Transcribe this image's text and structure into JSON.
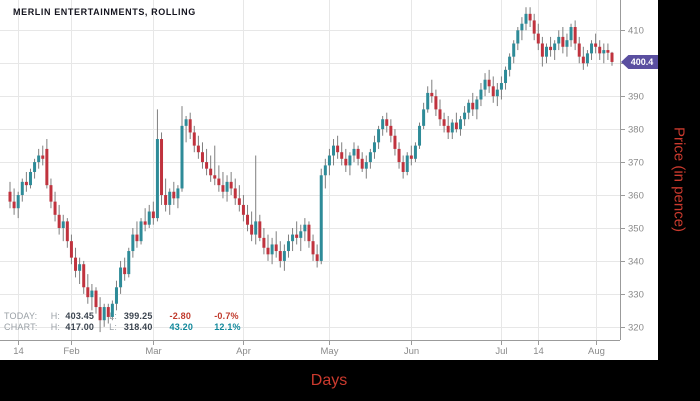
{
  "window": {
    "title": "MERLIN ENTERTAINMENTS, ROLLING"
  },
  "axes": {
    "x_label": "Days",
    "y_label": "Price (in pence)"
  },
  "price_badge": {
    "value": "400.4"
  },
  "stats": {
    "today": {
      "label": "TODAY:",
      "h_label": "H:",
      "high": "403.45",
      "l_label": "L:",
      "low": "399.25",
      "change": "-2.80",
      "change_pct": "-0.7%"
    },
    "chart": {
      "label": "CHART:",
      "h_label": "H:",
      "high": "417.00",
      "l_label": "L:",
      "low": "318.40",
      "change": "43.20",
      "change_pct": "12.1%"
    }
  },
  "colors": {
    "up_candle": "#2e8b98",
    "down_candle": "#c0333e",
    "wick": "#7f7f7f",
    "grid": "#e7e7e7",
    "axis": "#9b9b9b",
    "tick_label": "#8a8a8a",
    "badge": "#5a4fa0",
    "accent_red": "#cb3a2e",
    "positive": "#11889b",
    "negative": "#c0392b"
  },
  "chart_data": {
    "type": "candlestick",
    "title": "MERLIN ENTERTAINMENTS, ROLLING",
    "xlabel": "Days",
    "ylabel": "Price (in pence)",
    "ylim": [
      316.0,
      419.2
    ],
    "y_ticks": [
      320,
      330,
      340,
      350,
      360,
      370,
      380,
      390,
      400,
      410
    ],
    "x_ticks": [
      {
        "label": "14",
        "index": 2
      },
      {
        "label": "Feb",
        "index": 15
      },
      {
        "label": "Mar",
        "index": 35
      },
      {
        "label": "Apr",
        "index": 57
      },
      {
        "label": "May",
        "index": 78
      },
      {
        "label": "Jun",
        "index": 98
      },
      {
        "label": "Jul",
        "index": 120
      },
      {
        "label": "14",
        "index": 129
      },
      {
        "label": "Aug",
        "index": 143
      }
    ],
    "last_price": 400.4,
    "today_high": 403.45,
    "today_low": 399.25,
    "today_change": -2.8,
    "today_change_pct": -0.7,
    "chart_high": 417.0,
    "chart_low": 318.4,
    "chart_change": 43.2,
    "chart_change_pct": 12.1,
    "ohlc_format": [
      "open",
      "high",
      "low",
      "close"
    ],
    "candles": [
      [
        361,
        364,
        356,
        358
      ],
      [
        358,
        362,
        354,
        356
      ],
      [
        356,
        361,
        353,
        360
      ],
      [
        360,
        365,
        358,
        364
      ],
      [
        364,
        367,
        361,
        363
      ],
      [
        363,
        368,
        362,
        367
      ],
      [
        367,
        371,
        365,
        370
      ],
      [
        370,
        374,
        368,
        372
      ],
      [
        372,
        375,
        369,
        371
      ],
      [
        374,
        377,
        362,
        363
      ],
      [
        363,
        365,
        356,
        358
      ],
      [
        358,
        361,
        352,
        354
      ],
      [
        354,
        357,
        348,
        350
      ],
      [
        350,
        354,
        346,
        352
      ],
      [
        352,
        353,
        344,
        346
      ],
      [
        346,
        348,
        339,
        341
      ],
      [
        341,
        344,
        335,
        337
      ],
      [
        337,
        341,
        333,
        339
      ],
      [
        339,
        340,
        330,
        332
      ],
      [
        332,
        336,
        327,
        329
      ],
      [
        329,
        333,
        325,
        331
      ],
      [
        331,
        332,
        324,
        326
      ],
      [
        326,
        329,
        318.4,
        322
      ],
      [
        322,
        327,
        320,
        326
      ],
      [
        326,
        327,
        321,
        323
      ],
      [
        323,
        328,
        322,
        327
      ],
      [
        327,
        334,
        325,
        332
      ],
      [
        332,
        340,
        330,
        338
      ],
      [
        338,
        341,
        334,
        336
      ],
      [
        336,
        344,
        335,
        343
      ],
      [
        343,
        350,
        341,
        348
      ],
      [
        348,
        352,
        344,
        346
      ],
      [
        346,
        353,
        345,
        352
      ],
      [
        352,
        356,
        349,
        351
      ],
      [
        351,
        357,
        350,
        355
      ],
      [
        355,
        358,
        351,
        353
      ],
      [
        353,
        386,
        352,
        377
      ],
      [
        377,
        379,
        357,
        360
      ],
      [
        360,
        365,
        355,
        357
      ],
      [
        357,
        362,
        354,
        361
      ],
      [
        361,
        364,
        357,
        359
      ],
      [
        359,
        363,
        356,
        362
      ],
      [
        362,
        387,
        361,
        381
      ],
      [
        381,
        384,
        376,
        383
      ],
      [
        383,
        385,
        377,
        379
      ],
      [
        379,
        381,
        373,
        375
      ],
      [
        375,
        378,
        371,
        373
      ],
      [
        373,
        376,
        368,
        370
      ],
      [
        370,
        374,
        366,
        368
      ],
      [
        368,
        372,
        364,
        366
      ],
      [
        366,
        375,
        363,
        365
      ],
      [
        365,
        369,
        361,
        363
      ],
      [
        363,
        367,
        359,
        361
      ],
      [
        361,
        366,
        358,
        364
      ],
      [
        364,
        367,
        360,
        362
      ],
      [
        362,
        365,
        357,
        359
      ],
      [
        359,
        363,
        355,
        357
      ],
      [
        357,
        360,
        352,
        354
      ],
      [
        354,
        357,
        349,
        351
      ],
      [
        351,
        355,
        346,
        348
      ],
      [
        348,
        372,
        345,
        352
      ],
      [
        352,
        354,
        346,
        347
      ],
      [
        347,
        350,
        342,
        344
      ],
      [
        344,
        348,
        340,
        342
      ],
      [
        342,
        347,
        339,
        345
      ],
      [
        345,
        349,
        341,
        343
      ],
      [
        343,
        346,
        338,
        340
      ],
      [
        340,
        345,
        337,
        343
      ],
      [
        343,
        348,
        341,
        346
      ],
      [
        346,
        350,
        343,
        348
      ],
      [
        348,
        352,
        345,
        347
      ],
      [
        347,
        351,
        343,
        349
      ],
      [
        349,
        353,
        346,
        351
      ],
      [
        351,
        352,
        344,
        346
      ],
      [
        346,
        348,
        340,
        342
      ],
      [
        342,
        345,
        338,
        340
      ],
      [
        340,
        368,
        339,
        366
      ],
      [
        366,
        371,
        362,
        369
      ],
      [
        369,
        374,
        366,
        372
      ],
      [
        372,
        377,
        369,
        375
      ],
      [
        375,
        378,
        371,
        373
      ],
      [
        373,
        376,
        369,
        371
      ],
      [
        371,
        374,
        367,
        369
      ],
      [
        369,
        373,
        366,
        372
      ],
      [
        372,
        376,
        370,
        374
      ],
      [
        374,
        375,
        369,
        371
      ],
      [
        371,
        373,
        367,
        368
      ],
      [
        368,
        372,
        365,
        370
      ],
      [
        370,
        374,
        368,
        373
      ],
      [
        373,
        378,
        371,
        376
      ],
      [
        376,
        381,
        374,
        380
      ],
      [
        380,
        384,
        378,
        383
      ],
      [
        383,
        385,
        379,
        381
      ],
      [
        381,
        383,
        376,
        378
      ],
      [
        378,
        380,
        372,
        374
      ],
      [
        374,
        376,
        368,
        370
      ],
      [
        370,
        372,
        365,
        367
      ],
      [
        367,
        373,
        366,
        372
      ],
      [
        372,
        375,
        369,
        371
      ],
      [
        371,
        376,
        370,
        375
      ],
      [
        375,
        382,
        374,
        381
      ],
      [
        381,
        388,
        380,
        386
      ],
      [
        386,
        393,
        385,
        391
      ],
      [
        391,
        395,
        388,
        390
      ],
      [
        390,
        392,
        384,
        386
      ],
      [
        386,
        389,
        381,
        383
      ],
      [
        383,
        385,
        379,
        381
      ],
      [
        381,
        384,
        377,
        379
      ],
      [
        379,
        383,
        377,
        382
      ],
      [
        382,
        385,
        379,
        380
      ],
      [
        380,
        384,
        378,
        383
      ],
      [
        383,
        387,
        381,
        385
      ],
      [
        385,
        389,
        383,
        388
      ],
      [
        388,
        391,
        384,
        386
      ],
      [
        386,
        390,
        383,
        389
      ],
      [
        389,
        394,
        387,
        392
      ],
      [
        392,
        397,
        390,
        395
      ],
      [
        395,
        398,
        391,
        393
      ],
      [
        393,
        396,
        388,
        390
      ],
      [
        390,
        394,
        387,
        392
      ],
      [
        392,
        396,
        389,
        394
      ],
      [
        394,
        399,
        392,
        398
      ],
      [
        398,
        403,
        396,
        402
      ],
      [
        402,
        407,
        400,
        406
      ],
      [
        406,
        411,
        404,
        410
      ],
      [
        410,
        414,
        407,
        412
      ],
      [
        412,
        417,
        410,
        415
      ],
      [
        415,
        417,
        411,
        413
      ],
      [
        413,
        415,
        407,
        409
      ],
      [
        409,
        412,
        404,
        406
      ],
      [
        406,
        408,
        399,
        402
      ],
      [
        402,
        406,
        400,
        405
      ],
      [
        405,
        408,
        402,
        404
      ],
      [
        404,
        407,
        401,
        406
      ],
      [
        406,
        410,
        404,
        408
      ],
      [
        408,
        411,
        403,
        405
      ],
      [
        405,
        409,
        402,
        407
      ],
      [
        407,
        412,
        405,
        411
      ],
      [
        411,
        413,
        404,
        406
      ],
      [
        406,
        408,
        400,
        402
      ],
      [
        402,
        405,
        398,
        400
      ],
      [
        400,
        404,
        399,
        403
      ],
      [
        403,
        407,
        401,
        406
      ],
      [
        406,
        409,
        403,
        405
      ],
      [
        405,
        407,
        401,
        403
      ],
      [
        403,
        406,
        400,
        404
      ],
      [
        404,
        406,
        401,
        403.2
      ],
      [
        403.2,
        403.45,
        399.25,
        400.4
      ]
    ]
  }
}
